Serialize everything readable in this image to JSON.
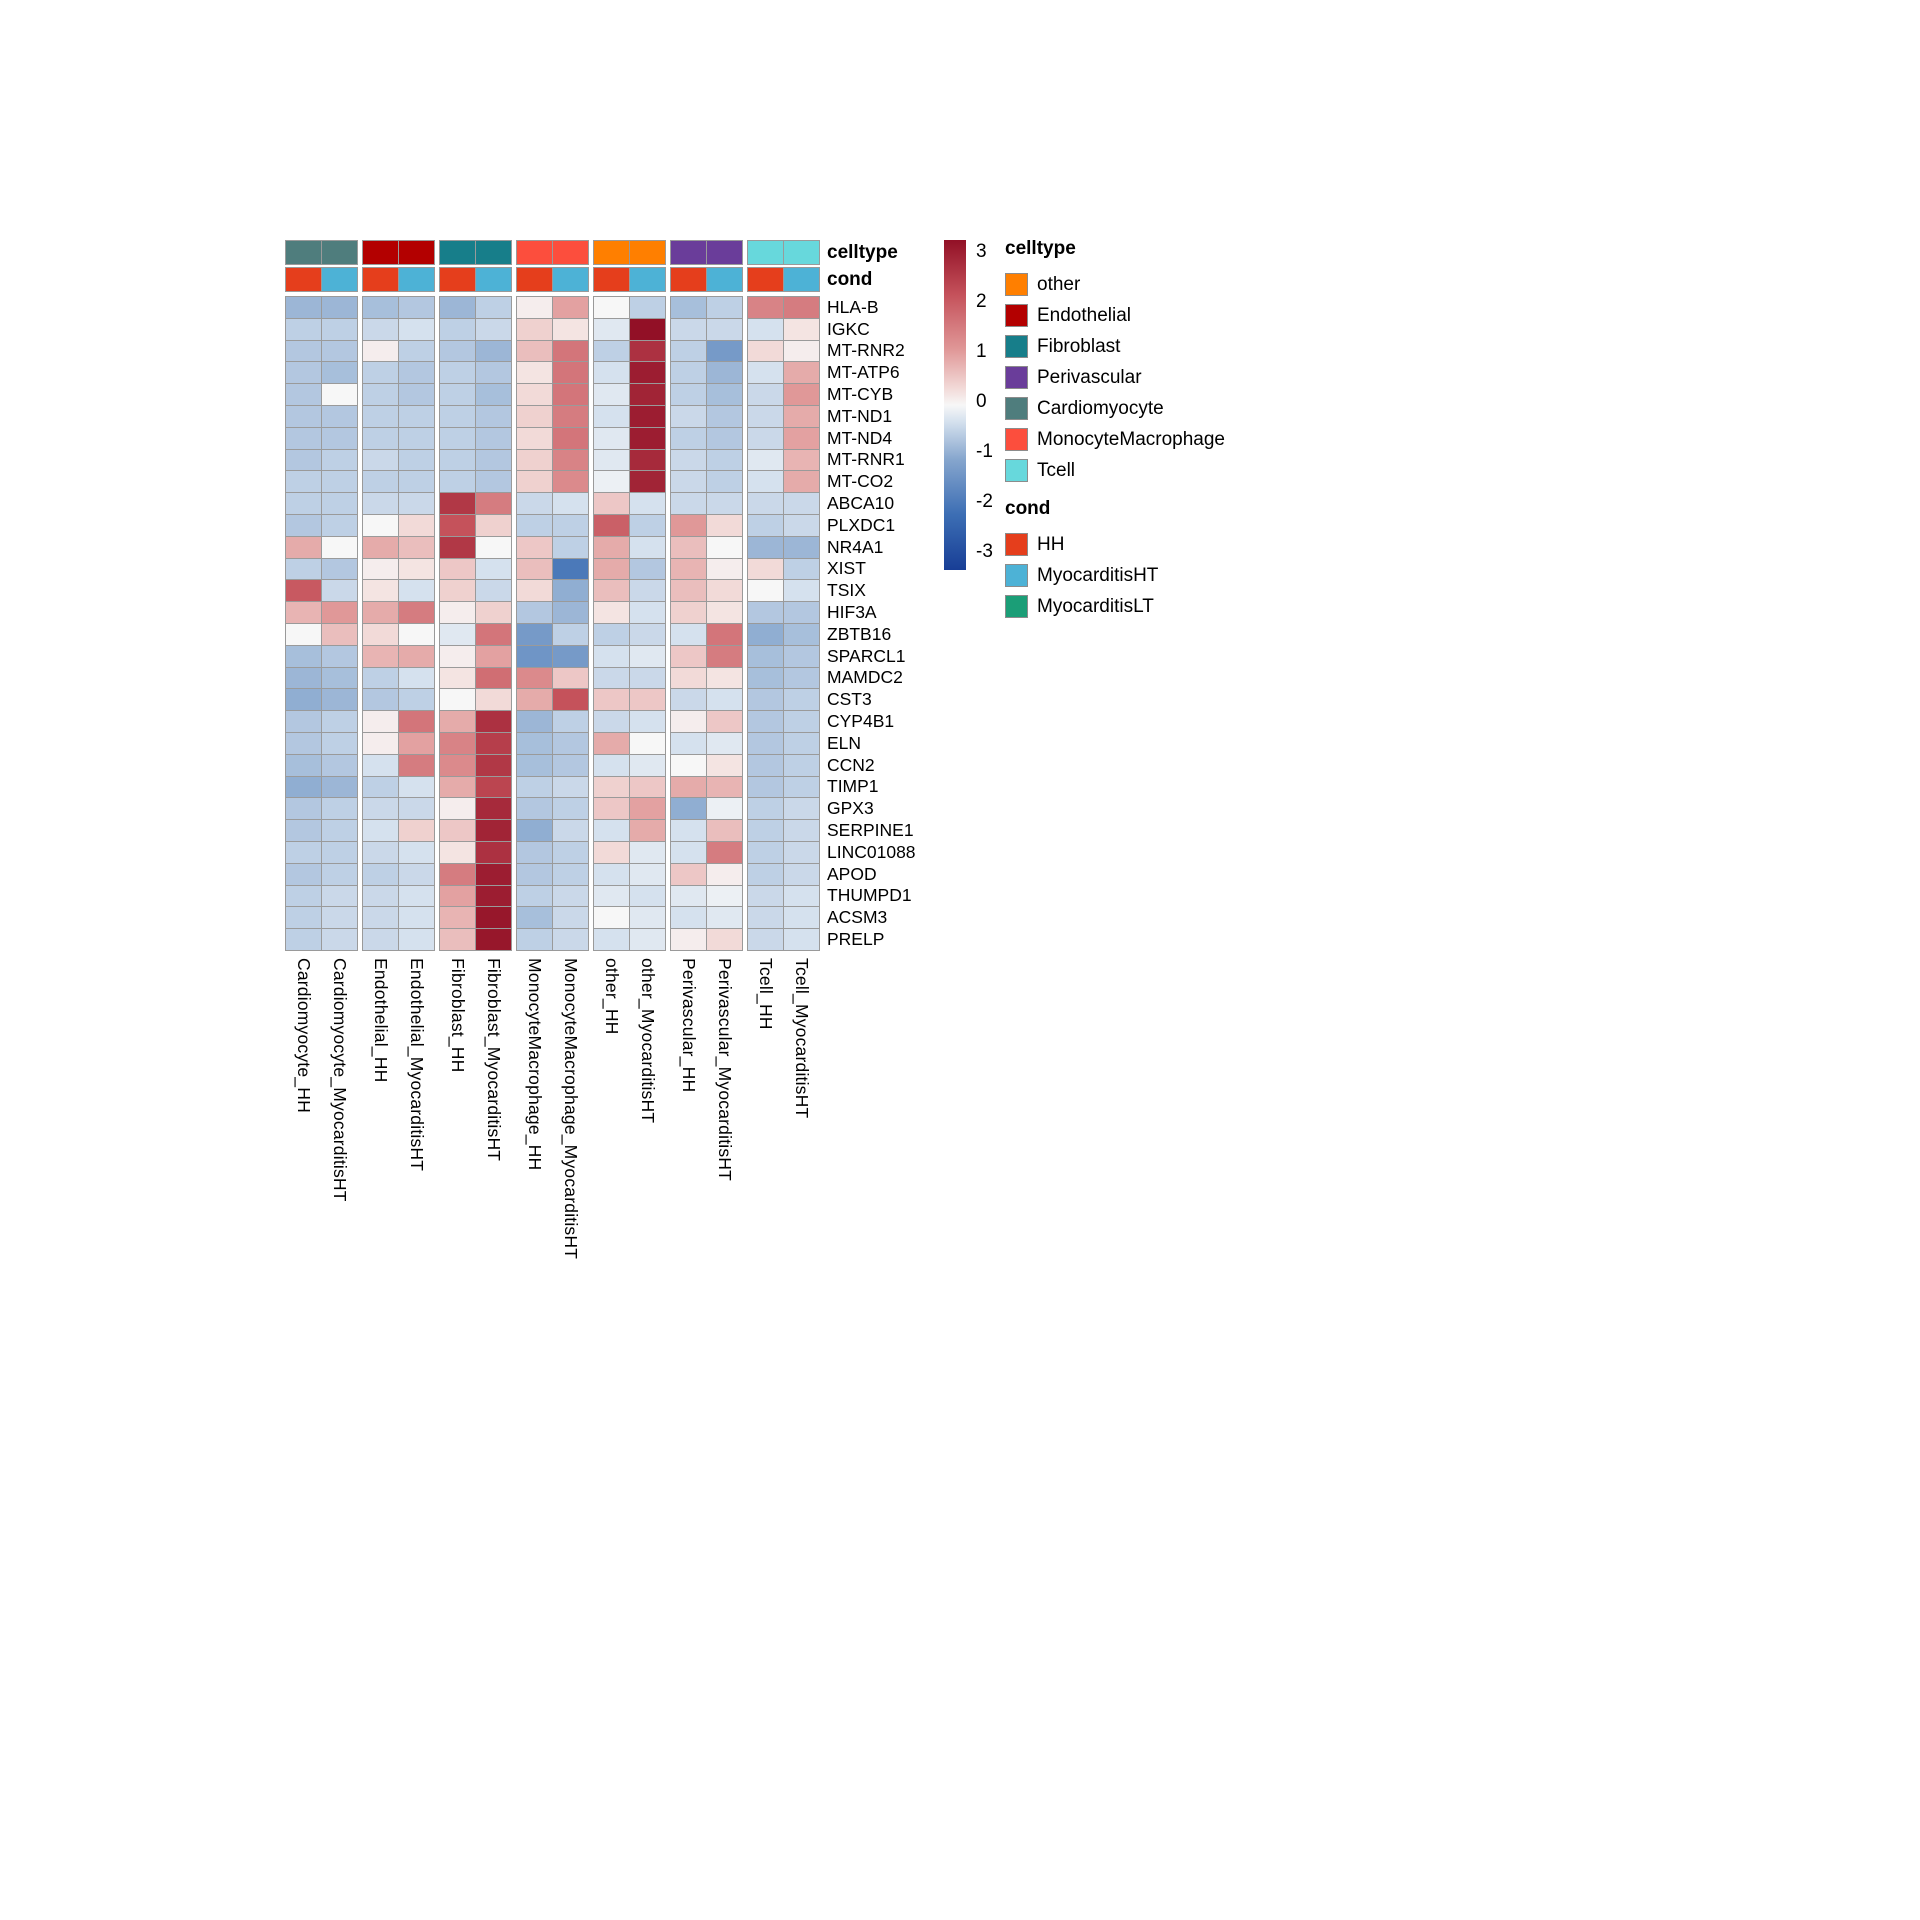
{
  "annotation_labels": {
    "celltype": "celltype",
    "cond": "cond"
  },
  "legend": {
    "celltype": {
      "title": "celltype",
      "items": [
        {
          "label": "other",
          "color": "#FF7F00"
        },
        {
          "label": "Endothelial",
          "color": "#B30000"
        },
        {
          "label": "Fibroblast",
          "color": "#177E8A"
        },
        {
          "label": "Perivascular",
          "color": "#6A3D9A"
        },
        {
          "label": "Cardiomyocyte",
          "color": "#4F7D7D"
        },
        {
          "label": "MonocyteMacrophage",
          "color": "#FC4E3D"
        },
        {
          "label": "Tcell",
          "color": "#67D8DC"
        }
      ]
    },
    "cond": {
      "title": "cond",
      "items": [
        {
          "label": "HH",
          "color": "#E53E1C"
        },
        {
          "label": "MyocarditisHT",
          "color": "#4DB2D6"
        },
        {
          "label": "MyocarditisLT",
          "color": "#1B9E77"
        }
      ]
    }
  },
  "chart_data": {
    "type": "heatmap",
    "title": "",
    "genes": [
      "HLA-B",
      "IGKC",
      "MT-RNR2",
      "MT-ATP6",
      "MT-CYB",
      "MT-ND1",
      "MT-ND4",
      "MT-RNR1",
      "MT-CO2",
      "ABCA10",
      "PLXDC1",
      "NR4A1",
      "XIST",
      "TSIX",
      "HIF3A",
      "ZBTB16",
      "SPARCL1",
      "MAMDC2",
      "CST3",
      "CYP4B1",
      "ELN",
      "CCN2",
      "TIMP1",
      "GPX3",
      "SERPINE1",
      "LINC01088",
      "APOD",
      "THUMPD1",
      "ACSM3",
      "PRELP"
    ],
    "columns": [
      "Cardiomyocyte_HH",
      "Cardiomyocyte_MyocarditisHT",
      "Endothelial_HH",
      "Endothelial_MyocarditisHT",
      "Fibroblast_HH",
      "Fibroblast_MyocarditisHT",
      "MonocyteMacrophage_HH",
      "MonocyteMacrophage_MyocarditisHT",
      "other_HH",
      "other_MyocarditisHT",
      "Perivascular_HH",
      "Perivascular_MyocarditisHT",
      "Tcell_HH",
      "Tcell_MyocarditisHT"
    ],
    "column_celltypes": [
      "Cardiomyocyte",
      "Cardiomyocyte",
      "Endothelial",
      "Endothelial",
      "Fibroblast",
      "Fibroblast",
      "MonocyteMacrophage",
      "MonocyteMacrophage",
      "other",
      "other",
      "Perivascular",
      "Perivascular",
      "Tcell",
      "Tcell"
    ],
    "column_conds": [
      "HH",
      "MyocarditisHT",
      "HH",
      "MyocarditisHT",
      "HH",
      "MyocarditisHT",
      "HH",
      "MyocarditisHT",
      "HH",
      "MyocarditisHT",
      "HH",
      "MyocarditisHT",
      "HH",
      "MyocarditisHT"
    ],
    "celltype_colors": {
      "other": "#FF7F00",
      "Endothelial": "#B30000",
      "Fibroblast": "#177E8A",
      "Perivascular": "#6A3D9A",
      "Cardiomyocyte": "#4F7D7D",
      "MonocyteMacrophage": "#FC4E3D",
      "Tcell": "#67D8DC"
    },
    "cond_colors": {
      "HH": "#E53E1C",
      "MyocarditisHT": "#4DB2D6",
      "MyocarditisLT": "#1B9E77"
    },
    "values": [
      [
        -0.8,
        -0.8,
        -0.7,
        -0.6,
        -0.8,
        -0.5,
        0.1,
        0.9,
        0.0,
        -0.5,
        -0.7,
        -0.5,
        1.3,
        1.4
      ],
      [
        -0.5,
        -0.5,
        -0.4,
        -0.3,
        -0.5,
        -0.4,
        0.4,
        0.2,
        -0.2,
        3.0,
        -0.4,
        -0.4,
        -0.3,
        0.2
      ],
      [
        -0.6,
        -0.6,
        0.1,
        -0.5,
        -0.6,
        -0.8,
        0.6,
        1.5,
        -0.5,
        2.5,
        -0.5,
        -1.2,
        0.3,
        0.1
      ],
      [
        -0.6,
        -0.7,
        -0.5,
        -0.6,
        -0.5,
        -0.6,
        0.2,
        1.5,
        -0.3,
        2.8,
        -0.5,
        -0.8,
        -0.3,
        0.8
      ],
      [
        -0.6,
        0.0,
        -0.5,
        -0.6,
        -0.5,
        -0.7,
        0.3,
        1.5,
        -0.2,
        2.7,
        -0.5,
        -0.7,
        -0.4,
        1.0
      ],
      [
        -0.6,
        -0.6,
        -0.5,
        -0.5,
        -0.5,
        -0.6,
        0.4,
        1.4,
        -0.3,
        2.8,
        -0.4,
        -0.6,
        -0.4,
        0.8
      ],
      [
        -0.6,
        -0.6,
        -0.5,
        -0.5,
        -0.5,
        -0.6,
        0.3,
        1.5,
        -0.2,
        2.8,
        -0.5,
        -0.6,
        -0.4,
        0.9
      ],
      [
        -0.6,
        -0.5,
        -0.4,
        -0.5,
        -0.5,
        -0.6,
        0.4,
        1.3,
        -0.2,
        2.6,
        -0.4,
        -0.5,
        -0.2,
        0.7
      ],
      [
        -0.5,
        -0.5,
        -0.5,
        -0.5,
        -0.5,
        -0.6,
        0.4,
        1.2,
        -0.1,
        2.7,
        -0.4,
        -0.5,
        -0.3,
        0.8
      ],
      [
        -0.5,
        -0.5,
        -0.4,
        -0.4,
        2.4,
        1.4,
        -0.4,
        -0.3,
        0.5,
        -0.3,
        -0.4,
        -0.4,
        -0.4,
        -0.4
      ],
      [
        -0.6,
        -0.5,
        0.0,
        0.3,
        2.0,
        0.4,
        -0.5,
        -0.5,
        1.8,
        -0.5,
        1.0,
        0.3,
        -0.5,
        -0.4
      ],
      [
        0.8,
        0.0,
        0.8,
        0.6,
        2.4,
        0.0,
        0.5,
        -0.5,
        0.8,
        -0.3,
        0.6,
        0.0,
        -0.8,
        -0.8
      ],
      [
        -0.5,
        -0.6,
        0.1,
        0.2,
        0.5,
        -0.3,
        0.6,
        -1.8,
        0.8,
        -0.6,
        0.7,
        0.1,
        0.3,
        -0.5
      ],
      [
        1.9,
        -0.4,
        0.2,
        -0.3,
        0.4,
        -0.4,
        0.3,
        -0.9,
        0.6,
        -0.4,
        0.6,
        0.3,
        0.0,
        -0.3
      ],
      [
        0.7,
        1.0,
        0.8,
        1.4,
        0.1,
        0.4,
        -0.6,
        -0.8,
        0.2,
        -0.3,
        0.4,
        0.2,
        -0.6,
        -0.6
      ],
      [
        0.0,
        0.6,
        0.3,
        0.0,
        -0.2,
        1.5,
        -1.2,
        -0.5,
        -0.5,
        -0.4,
        -0.3,
        1.5,
        -0.9,
        -0.7
      ],
      [
        -0.7,
        -0.6,
        0.7,
        0.8,
        0.1,
        0.9,
        -1.3,
        -1.2,
        -0.3,
        -0.2,
        0.5,
        1.4,
        -0.7,
        -0.6
      ],
      [
        -0.8,
        -0.7,
        -0.5,
        -0.3,
        0.2,
        1.6,
        1.2,
        0.5,
        -0.4,
        -0.4,
        0.3,
        0.2,
        -0.7,
        -0.6
      ],
      [
        -0.9,
        -0.8,
        -0.6,
        -0.5,
        0.0,
        0.3,
        0.8,
        2.0,
        0.5,
        0.5,
        -0.4,
        -0.3,
        -0.6,
        -0.5
      ],
      [
        -0.6,
        -0.5,
        0.1,
        1.5,
        0.8,
        2.5,
        -0.8,
        -0.5,
        -0.4,
        -0.3,
        0.1,
        0.5,
        -0.6,
        -0.5
      ],
      [
        -0.6,
        -0.5,
        0.1,
        0.9,
        1.3,
        2.3,
        -0.7,
        -0.6,
        0.8,
        0.0,
        -0.3,
        -0.2,
        -0.6,
        -0.5
      ],
      [
        -0.7,
        -0.6,
        -0.3,
        1.4,
        1.2,
        2.4,
        -0.7,
        -0.6,
        -0.3,
        -0.2,
        0.0,
        0.2,
        -0.6,
        -0.5
      ],
      [
        -0.9,
        -0.8,
        -0.5,
        -0.3,
        0.8,
        2.2,
        -0.5,
        -0.4,
        0.4,
        0.5,
        0.8,
        0.7,
        -0.6,
        -0.5
      ],
      [
        -0.6,
        -0.5,
        -0.4,
        -0.4,
        0.1,
        2.6,
        -0.6,
        -0.5,
        0.5,
        0.9,
        -0.9,
        -0.1,
        -0.5,
        -0.4
      ],
      [
        -0.6,
        -0.5,
        -0.3,
        0.4,
        0.5,
        2.7,
        -0.9,
        -0.4,
        -0.3,
        0.8,
        -0.3,
        0.6,
        -0.5,
        -0.4
      ],
      [
        -0.5,
        -0.5,
        -0.4,
        -0.3,
        0.2,
        2.5,
        -0.6,
        -0.5,
        0.3,
        -0.2,
        -0.3,
        1.4,
        -0.5,
        -0.4
      ],
      [
        -0.6,
        -0.5,
        -0.5,
        -0.4,
        1.4,
        2.8,
        -0.6,
        -0.5,
        -0.3,
        -0.2,
        0.5,
        0.1,
        -0.5,
        -0.4
      ],
      [
        -0.5,
        -0.4,
        -0.4,
        -0.3,
        0.9,
        2.8,
        -0.5,
        -0.4,
        -0.2,
        -0.3,
        -0.2,
        -0.1,
        -0.4,
        -0.3
      ],
      [
        -0.5,
        -0.4,
        -0.4,
        -0.3,
        0.7,
        2.9,
        -0.7,
        -0.4,
        0.0,
        -0.2,
        -0.3,
        -0.2,
        -0.4,
        -0.3
      ],
      [
        -0.5,
        -0.4,
        -0.4,
        -0.3,
        0.6,
        2.9,
        -0.5,
        -0.4,
        -0.3,
        -0.2,
        0.1,
        0.3,
        -0.4,
        -0.3
      ]
    ],
    "color_scale": {
      "min": -3,
      "max": 3,
      "tick_labels": [
        "3",
        "2",
        "1",
        "0",
        "-1",
        "-2",
        "-3"
      ],
      "ticks": [
        3,
        2,
        1,
        0,
        -1,
        -2,
        -3
      ],
      "stops": [
        {
          "v": -3.0,
          "rgb": [
            24,
            62,
            150
          ]
        },
        {
          "v": -2.0,
          "rgb": [
            60,
            110,
            180
          ]
        },
        {
          "v": -1.0,
          "rgb": [
            133,
            165,
            205
          ]
        },
        {
          "v": -0.3,
          "rgb": [
            213,
            225,
            238
          ]
        },
        {
          "v": 0.0,
          "rgb": [
            247,
            247,
            247
          ]
        },
        {
          "v": 0.3,
          "rgb": [
            242,
            218,
            216
          ]
        },
        {
          "v": 1.0,
          "rgb": [
            224,
            152,
            152
          ]
        },
        {
          "v": 2.0,
          "rgb": [
            197,
            82,
            91
          ]
        },
        {
          "v": 3.0,
          "rgb": [
            146,
            16,
            38
          ]
        }
      ],
      "legend_position": "right",
      "grid": true
    }
  }
}
